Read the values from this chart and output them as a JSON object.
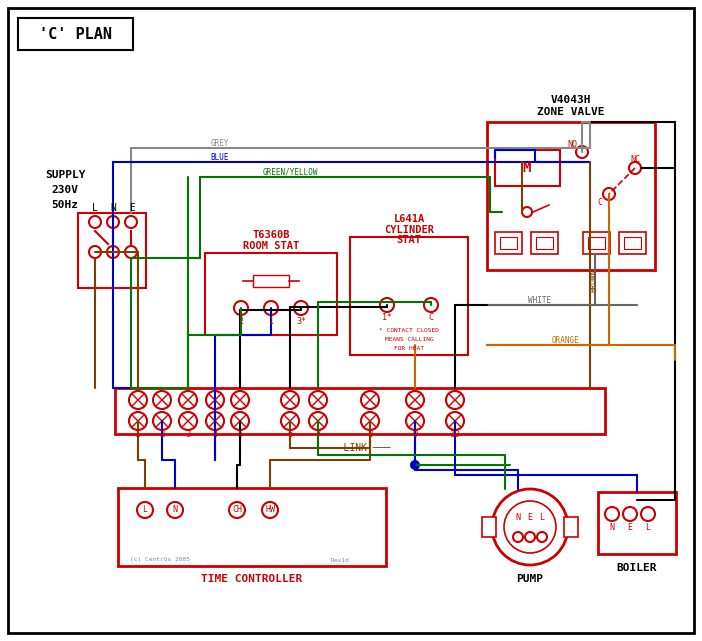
{
  "title": "'C' PLAN",
  "bg_color": "#ffffff",
  "border_color": "#000000",
  "red": "#cc0000",
  "blue": "#0000cc",
  "green": "#007700",
  "grey": "#888888",
  "brown": "#7a4000",
  "orange": "#cc6600",
  "black": "#000000",
  "supply_text": [
    "SUPPLY",
    "230V",
    "50Hz"
  ],
  "zone_valve_title": [
    "V4043H",
    "ZONE VALVE"
  ],
  "room_stat_title": [
    "T6360B",
    "ROOM STAT"
  ],
  "cylinder_stat_title": [
    "L641A",
    "CYLINDER",
    "STAT"
  ],
  "time_ctrl_label": "TIME CONTROLLER",
  "time_ctrl_terminals": [
    "L",
    "N",
    "CH",
    "HW"
  ],
  "pump_label": "PUMP",
  "boiler_label": "BOILER",
  "terminal_numbers": [
    "1",
    "2",
    "3",
    "4",
    "5",
    "6",
    "7",
    "8",
    "9",
    "10"
  ]
}
